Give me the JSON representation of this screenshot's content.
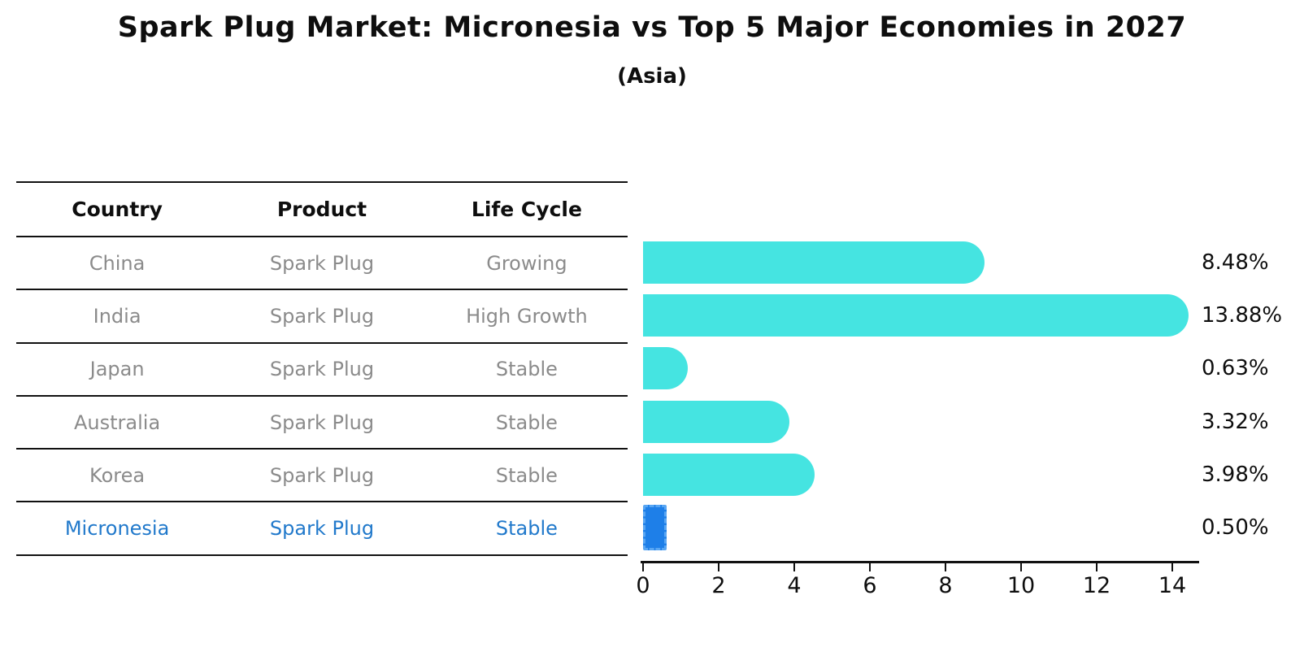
{
  "title": "Spark Plug Market: Micronesia vs Top 5 Major Economies in 2027",
  "subtitle": "(Asia)",
  "colors": {
    "bar": "#45e4e1",
    "highlight_bar_fill": "#1e7fe8",
    "highlight_bar_border": "#58a6f3",
    "highlight_text": "#2179cb",
    "row_text": "#8b8b8b",
    "heading_text": "#0e0e0e"
  },
  "table": {
    "headers": [
      "Country",
      "Product",
      "Life Cycle"
    ],
    "rows": [
      {
        "country": "China",
        "product": "Spark Plug",
        "life_cycle": "Growing"
      },
      {
        "country": "India",
        "product": "Spark Plug",
        "life_cycle": "High Growth"
      },
      {
        "country": "Japan",
        "product": "Spark Plug",
        "life_cycle": "Stable"
      },
      {
        "country": "Australia",
        "product": "Spark Plug",
        "life_cycle": "Stable"
      },
      {
        "country": "Korea",
        "product": "Spark Plug",
        "life_cycle": "Stable"
      },
      {
        "country": "Micronesia",
        "product": "Spark Plug",
        "life_cycle": "Stable"
      }
    ]
  },
  "chart_data": {
    "type": "bar",
    "orientation": "horizontal",
    "title": "Spark Plug Market: Micronesia vs Top 5 Major Economies in 2027",
    "subtitle": "(Asia)",
    "categories": [
      "China",
      "India",
      "Japan",
      "Australia",
      "Korea",
      "Micronesia"
    ],
    "values": [
      8.48,
      13.88,
      0.63,
      3.32,
      3.98,
      0.5
    ],
    "labels": [
      "8.48%",
      "13.88%",
      "0.63%",
      "3.32%",
      "3.98%",
      "0.50%"
    ],
    "xticks": [
      0,
      2,
      4,
      6,
      8,
      10,
      12,
      14
    ],
    "xlim": [
      0,
      14.65
    ],
    "grid": false,
    "legend": false,
    "highlight_index": 5,
    "highlight_category": "Micronesia"
  }
}
